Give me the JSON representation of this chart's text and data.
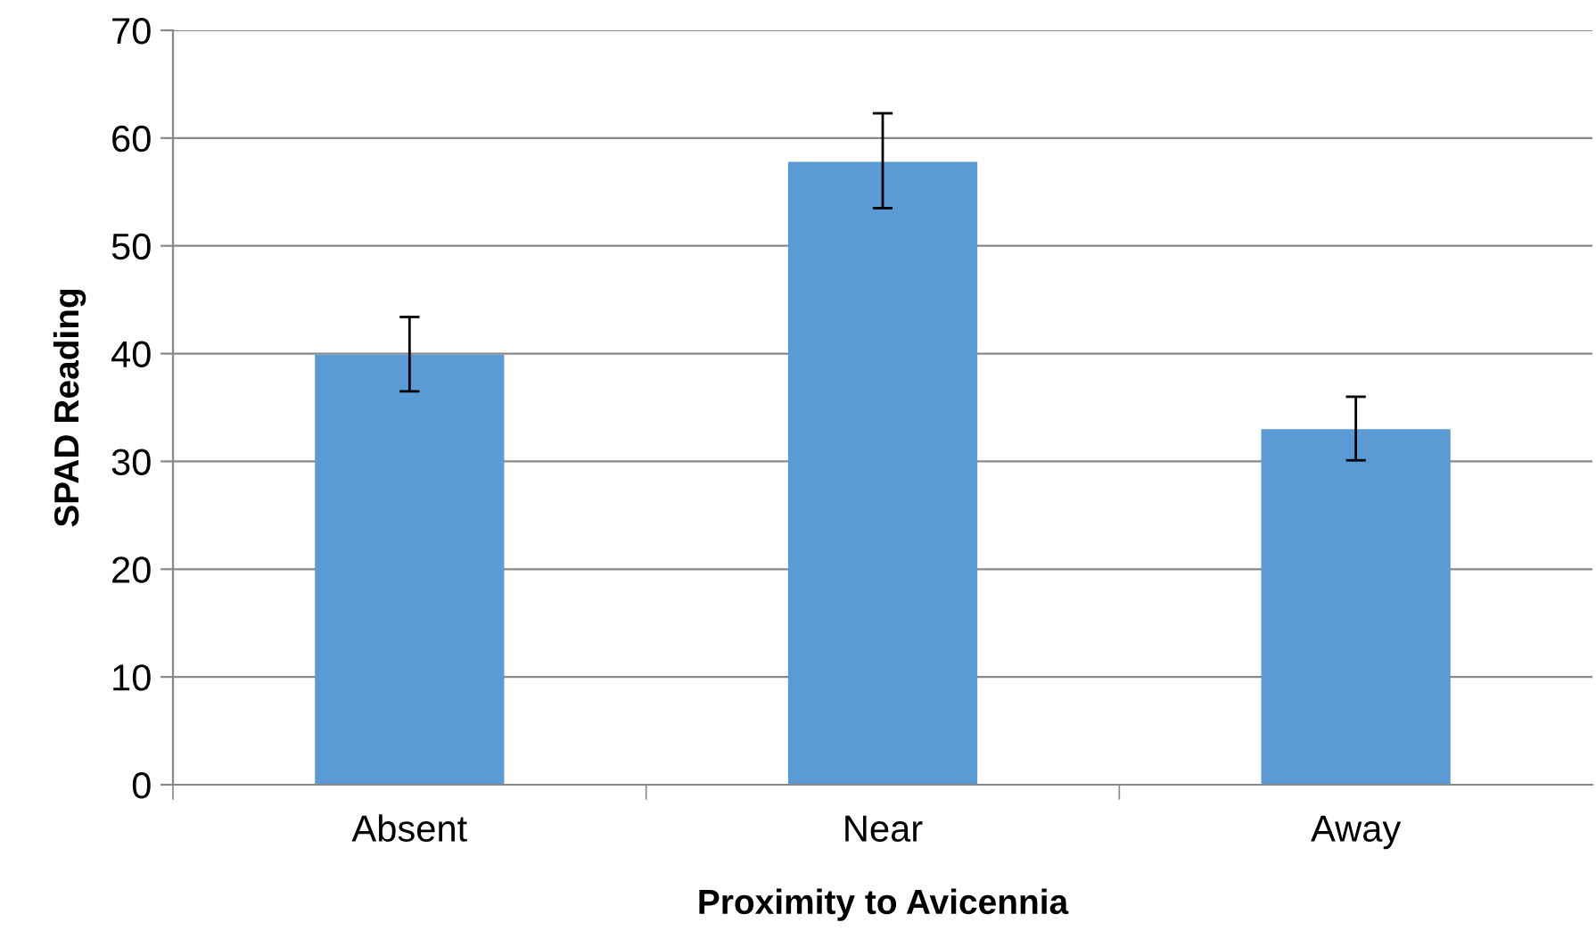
{
  "chart_data": {
    "type": "bar",
    "xlabel": "Proximity to Avicennia",
    "ylabel": "SPAD Reading",
    "categories": [
      "Absent",
      "Near",
      "Away"
    ],
    "values": [
      39.9,
      57.8,
      33.0
    ],
    "errors": [
      [
        36.5,
        43.4
      ],
      [
        53.5,
        62.3
      ],
      [
        30.1,
        36.0
      ]
    ],
    "color": "#5b9bd5",
    "ylim": [
      0,
      70
    ],
    "yticks": [
      0,
      10,
      20,
      30,
      40,
      50,
      60,
      70
    ],
    "grid": "y"
  }
}
